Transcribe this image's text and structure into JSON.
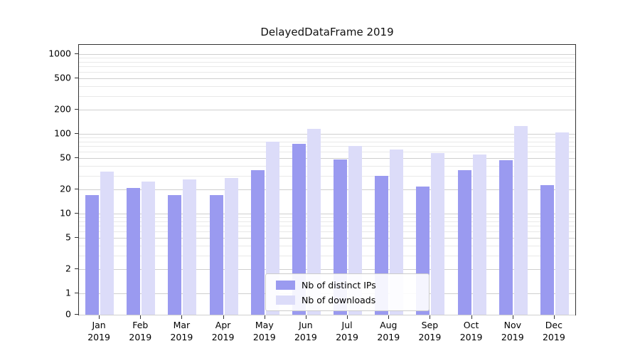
{
  "title": "DelayedDataFrame 2019",
  "chart_data": {
    "type": "bar",
    "title": "DelayedDataFrame 2019",
    "yscale": "symlog",
    "grid": true,
    "legend_position": "lower center inside plot",
    "ylim": [
      0,
      1500
    ],
    "y_ticks": [
      0,
      1,
      2,
      5,
      10,
      20,
      50,
      100,
      200,
      500,
      1000
    ],
    "y_minor_ticks": [
      3,
      4,
      6,
      7,
      8,
      9,
      30,
      40,
      60,
      70,
      80,
      90,
      300,
      400,
      600,
      700,
      800,
      900
    ],
    "categories": [
      "Jan 2019",
      "Feb 2019",
      "Mar 2019",
      "Apr 2019",
      "May 2019",
      "Jun 2019",
      "Jul 2019",
      "Aug 2019",
      "Sep 2019",
      "Oct 2019",
      "Nov 2019",
      "Dec 2019"
    ],
    "series": [
      {
        "name": "Nb of distinct IPs",
        "color": "#9a9af0",
        "values": [
          17,
          21,
          17,
          17,
          35,
          75,
          48,
          30,
          22,
          35,
          47,
          23
        ]
      },
      {
        "name": "Nb of downloads",
        "color": "#dcdcf9",
        "values": [
          34,
          25,
          27,
          28,
          80,
          115,
          70,
          64,
          58,
          55,
          125,
          105
        ]
      }
    ]
  },
  "colors": {
    "grid_major": "#cfcfcf",
    "grid_minor": "#e9e9e9",
    "axis": "#333333",
    "background": "#ffffff"
  }
}
